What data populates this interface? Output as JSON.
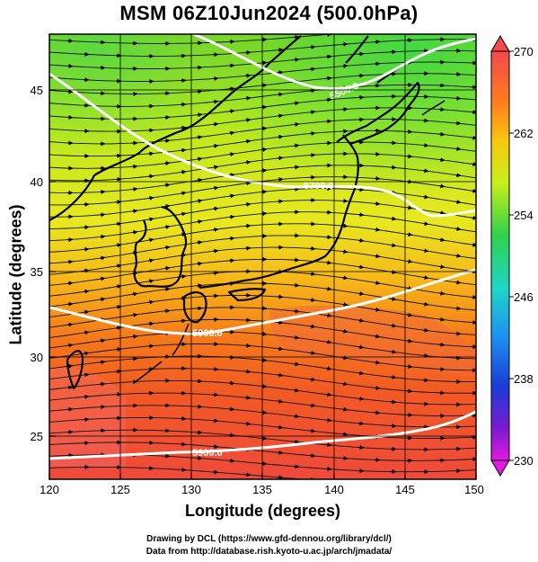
{
  "title": "MSM 06Z10Jun2024 (500.0hPa)",
  "x_axis": {
    "label": "Longitude (degrees)",
    "ticks": [
      "120",
      "125",
      "130",
      "135",
      "140",
      "145",
      "150"
    ]
  },
  "y_axis": {
    "label": "Latitude  (degrees)",
    "ticks": [
      "25",
      "30",
      "35",
      "40",
      "45"
    ]
  },
  "colorbar": {
    "ticks": [
      "270",
      "262",
      "254",
      "246",
      "238",
      "230"
    ],
    "colors": [
      "#f24a4a",
      "#ff7a1e",
      "#f7c80f",
      "#c8f01a",
      "#2fd24a",
      "#1fd6c8",
      "#1c8ff0",
      "#1a3cd8",
      "#7a1ad0",
      "#e01ae0"
    ]
  },
  "contours": [
    {
      "label": "5500.0",
      "kind": "geopotential"
    },
    {
      "label": "5700.0",
      "kind": "geopotential"
    },
    {
      "label": "5900.0",
      "kind": "geopotential"
    },
    {
      "label": "5900.0",
      "kind": "geopotential"
    }
  ],
  "credits": {
    "line1": "Drawing by DCL (https://www.gfd-dennou.org/library/dcl/)",
    "line2": "Data from http://database.rish.kyoto-u.ac.jp/arch/jmadata/"
  },
  "chart_data": {
    "type": "map",
    "title": "MSM 06Z10Jun2024 (500.0hPa)",
    "xlabel": "Longitude (degrees)",
    "ylabel": "Latitude  (degrees)",
    "xlim": [
      120,
      150
    ],
    "ylim": [
      22.4,
      47.6
    ],
    "x_ticks": [
      120,
      125,
      130,
      135,
      140,
      145,
      150
    ],
    "y_ticks": [
      25,
      30,
      35,
      40,
      45
    ],
    "colorbar_range": [
      230,
      270
    ],
    "colorbar_ticks": [
      230,
      238,
      246,
      254,
      262,
      270
    ],
    "fields": [
      "temperature (shaded)",
      "geopotential height (contours)",
      "wind (streamlines/arrows)"
    ]
  }
}
